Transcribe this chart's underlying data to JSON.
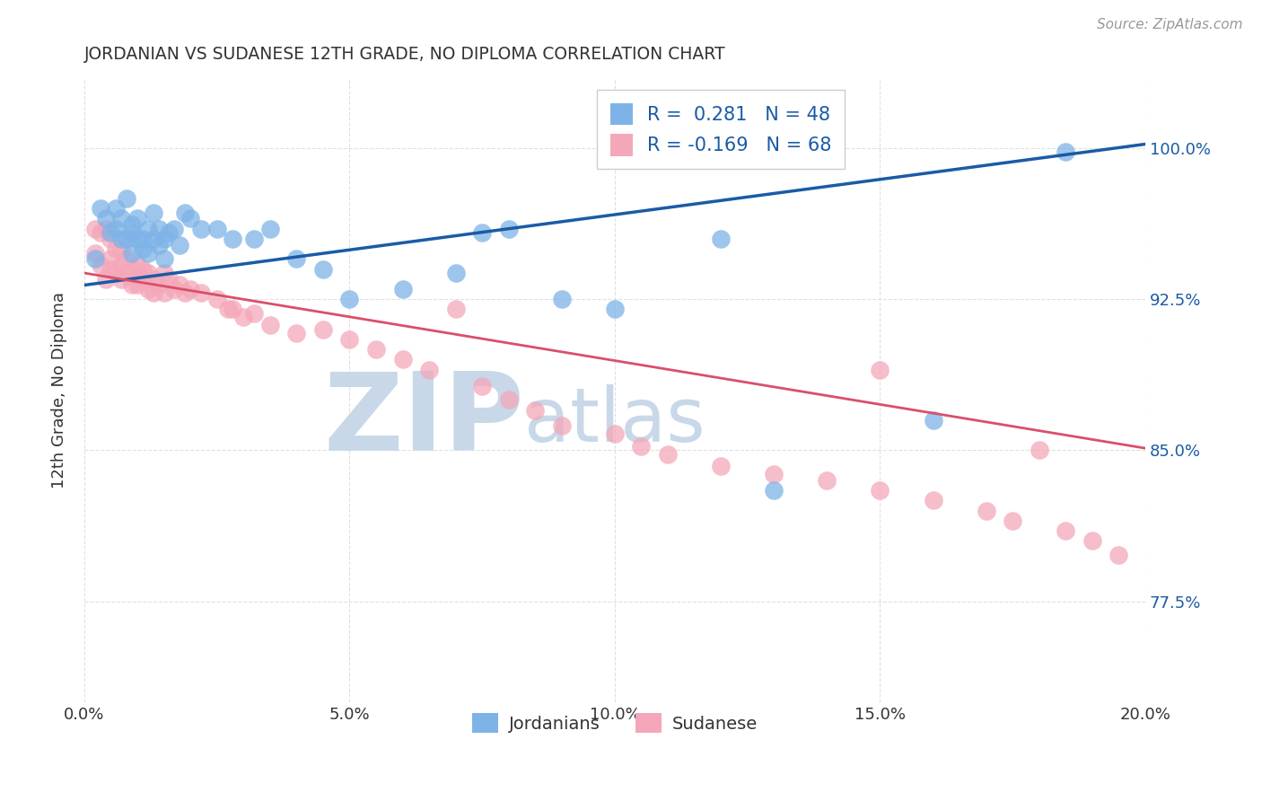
{
  "title": "JORDANIAN VS SUDANESE 12TH GRADE, NO DIPLOMA CORRELATION CHART",
  "source": "Source: ZipAtlas.com",
  "ylabel": "12th Grade, No Diploma",
  "xlabel_ticks": [
    "0.0%",
    "5.0%",
    "10.0%",
    "15.0%",
    "20.0%"
  ],
  "xlabel_values": [
    0.0,
    0.05,
    0.1,
    0.15,
    0.2
  ],
  "ylabel_ticks": [
    "77.5%",
    "85.0%",
    "92.5%",
    "100.0%"
  ],
  "ylabel_values": [
    0.775,
    0.85,
    0.925,
    1.0
  ],
  "xlim": [
    0.0,
    0.2
  ],
  "ylim": [
    0.725,
    1.035
  ],
  "jordanian_R": 0.281,
  "jordanian_N": 48,
  "sudanese_R": -0.169,
  "sudanese_N": 68,
  "jordanian_color": "#7EB3E8",
  "sudanese_color": "#F4A7B9",
  "jordanian_line_color": "#1A5BA6",
  "sudanese_line_color": "#D94F6A",
  "legend_text_color": "#1A5BA6",
  "title_color": "#333333",
  "watermark_zip": "ZIP",
  "watermark_atlas": "atlas",
  "watermark_color": "#C8D8E8",
  "background_color": "#FFFFFF",
  "grid_color": "#DDDDDD",
  "jordanian_line_x0": 0.0,
  "jordanian_line_y0": 0.932,
  "jordanian_line_x1": 0.2,
  "jordanian_line_y1": 1.002,
  "sudanese_line_x0": 0.0,
  "sudanese_line_y0": 0.938,
  "sudanese_line_x1": 0.2,
  "sudanese_line_y1": 0.851,
  "jordanian_x": [
    0.002,
    0.003,
    0.004,
    0.005,
    0.006,
    0.006,
    0.007,
    0.007,
    0.008,
    0.008,
    0.009,
    0.009,
    0.009,
    0.01,
    0.01,
    0.011,
    0.011,
    0.012,
    0.012,
    0.013,
    0.013,
    0.014,
    0.014,
    0.015,
    0.015,
    0.016,
    0.017,
    0.018,
    0.019,
    0.02,
    0.022,
    0.025,
    0.028,
    0.032,
    0.035,
    0.04,
    0.045,
    0.05,
    0.06,
    0.07,
    0.075,
    0.08,
    0.09,
    0.1,
    0.12,
    0.13,
    0.16,
    0.185
  ],
  "jordanian_y": [
    0.945,
    0.97,
    0.965,
    0.958,
    0.96,
    0.97,
    0.965,
    0.955,
    0.955,
    0.975,
    0.962,
    0.958,
    0.948,
    0.955,
    0.965,
    0.955,
    0.95,
    0.96,
    0.948,
    0.955,
    0.968,
    0.952,
    0.96,
    0.955,
    0.945,
    0.958,
    0.96,
    0.952,
    0.968,
    0.965,
    0.96,
    0.96,
    0.955,
    0.955,
    0.96,
    0.945,
    0.94,
    0.925,
    0.93,
    0.938,
    0.958,
    0.96,
    0.925,
    0.92,
    0.955,
    0.83,
    0.865,
    0.998
  ],
  "sudanese_x": [
    0.002,
    0.002,
    0.003,
    0.003,
    0.004,
    0.004,
    0.005,
    0.005,
    0.005,
    0.006,
    0.006,
    0.007,
    0.007,
    0.007,
    0.008,
    0.008,
    0.009,
    0.009,
    0.01,
    0.01,
    0.01,
    0.011,
    0.011,
    0.012,
    0.012,
    0.013,
    0.013,
    0.014,
    0.015,
    0.015,
    0.016,
    0.017,
    0.018,
    0.019,
    0.02,
    0.022,
    0.025,
    0.027,
    0.028,
    0.03,
    0.032,
    0.035,
    0.04,
    0.045,
    0.05,
    0.055,
    0.06,
    0.065,
    0.07,
    0.075,
    0.08,
    0.085,
    0.09,
    0.1,
    0.105,
    0.11,
    0.12,
    0.13,
    0.14,
    0.15,
    0.15,
    0.16,
    0.17,
    0.175,
    0.18,
    0.185,
    0.19,
    0.195
  ],
  "sudanese_y": [
    0.96,
    0.948,
    0.958,
    0.942,
    0.96,
    0.935,
    0.955,
    0.945,
    0.94,
    0.95,
    0.938,
    0.95,
    0.942,
    0.935,
    0.945,
    0.938,
    0.94,
    0.932,
    0.942,
    0.936,
    0.932,
    0.94,
    0.935,
    0.938,
    0.93,
    0.935,
    0.928,
    0.932,
    0.928,
    0.938,
    0.935,
    0.93,
    0.932,
    0.928,
    0.93,
    0.928,
    0.925,
    0.92,
    0.92,
    0.916,
    0.918,
    0.912,
    0.908,
    0.91,
    0.905,
    0.9,
    0.895,
    0.89,
    0.92,
    0.882,
    0.875,
    0.87,
    0.862,
    0.858,
    0.852,
    0.848,
    0.842,
    0.838,
    0.835,
    0.83,
    0.89,
    0.825,
    0.82,
    0.815,
    0.85,
    0.81,
    0.805,
    0.798
  ]
}
